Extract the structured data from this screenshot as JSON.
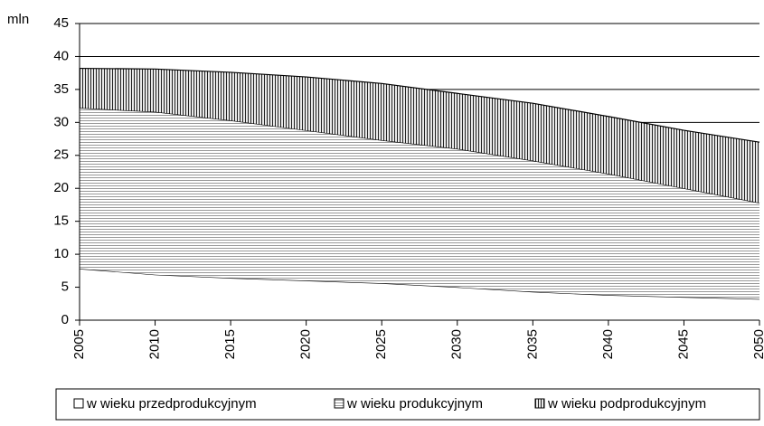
{
  "chart_data": {
    "type": "stacked-area",
    "y_label": "mln",
    "x": [
      2005,
      2010,
      2015,
      2020,
      2025,
      2030,
      2035,
      2040,
      2045,
      2050
    ],
    "series": [
      {
        "name": "w wieku przedprodukcyjnym",
        "color": "#ffffff",
        "values": [
          7.8,
          6.9,
          6.4,
          6.0,
          5.6,
          5.0,
          4.3,
          3.8,
          3.5,
          3.2
        ]
      },
      {
        "name": "w wieku produkcyjnym",
        "color": "#999999",
        "values": [
          24.4,
          24.7,
          23.9,
          22.8,
          21.7,
          21.0,
          19.9,
          18.4,
          16.5,
          14.6
        ]
      },
      {
        "name": "w wieku podprodukcyjnym",
        "color": "#222222",
        "values": [
          6.0,
          6.5,
          7.3,
          8.1,
          8.6,
          8.4,
          8.7,
          8.7,
          8.8,
          9.2
        ]
      }
    ],
    "xlim": [
      2005,
      2050
    ],
    "xticks": [
      2005,
      2010,
      2015,
      2020,
      2025,
      2030,
      2035,
      2040,
      2045,
      2050
    ],
    "ylim": [
      0,
      45
    ],
    "yticks": [
      0,
      5,
      10,
      15,
      20,
      25,
      30,
      35,
      40,
      45
    ],
    "grid": true,
    "legend": "bottom"
  }
}
